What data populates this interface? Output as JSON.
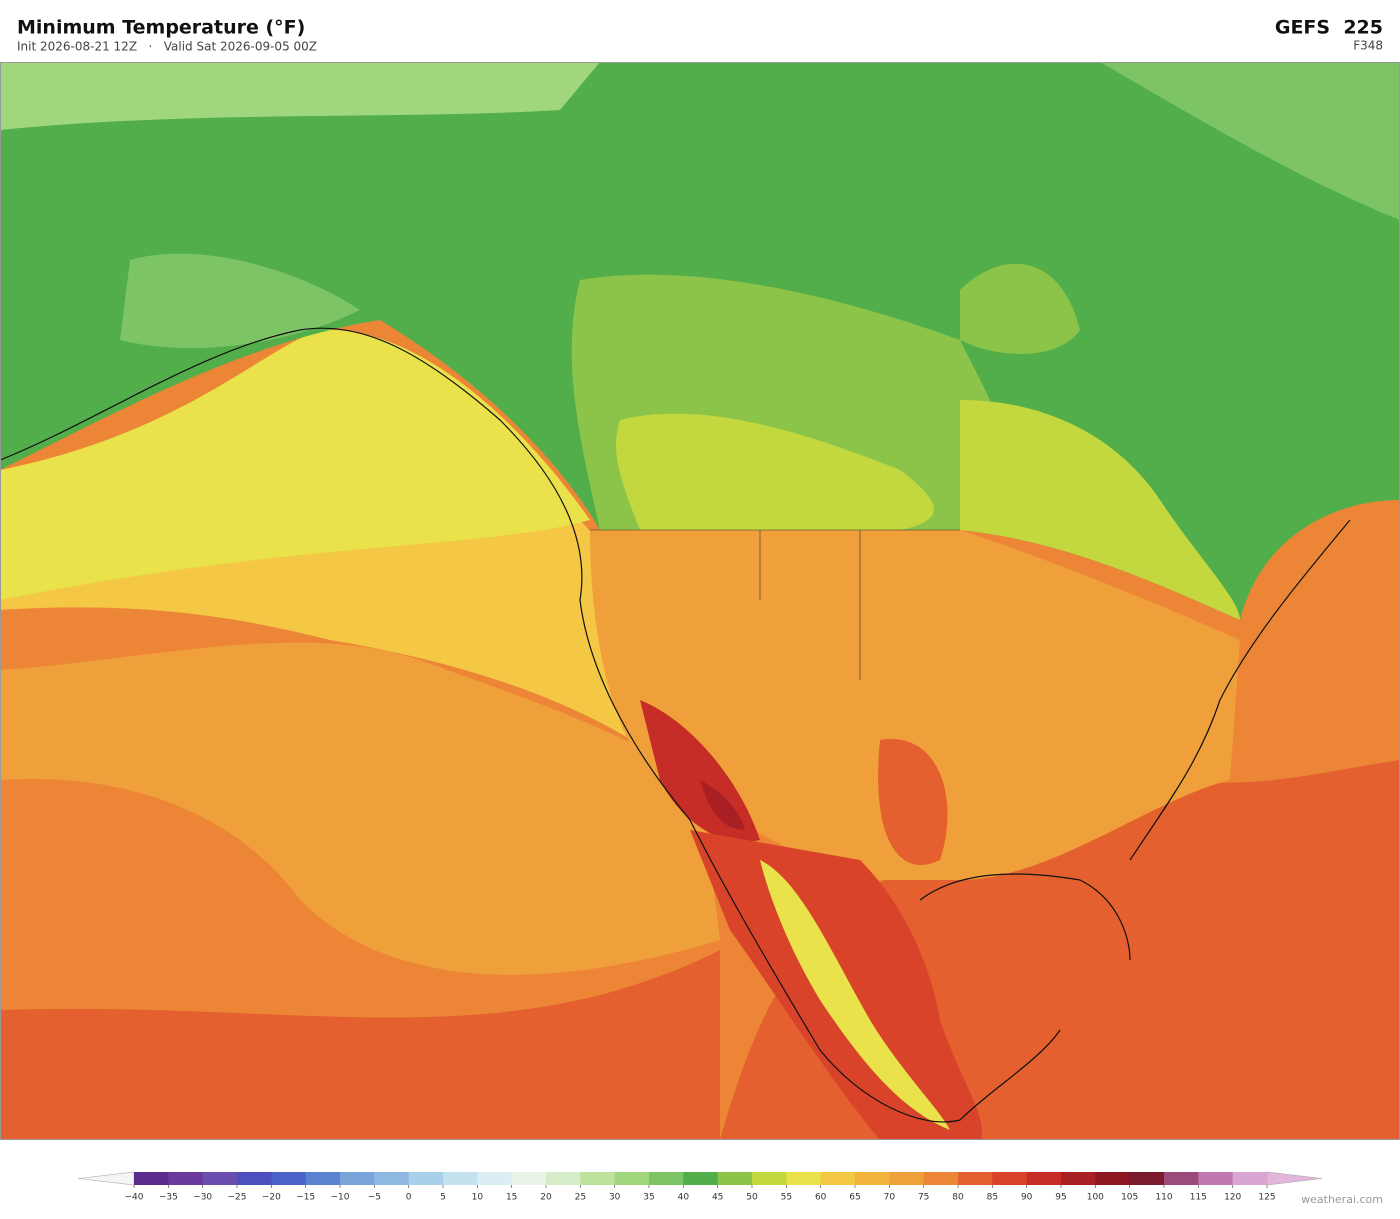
{
  "header": {
    "title": "Minimum Temperature  (°F)",
    "subtitle": "Init 2026-08-21 12Z   ·   Valid Sat 2026-09-05 00Z",
    "model": "GEFS  225",
    "forecast_hour": "F348"
  },
  "colorbar": {
    "labels": [
      "−40",
      "−35",
      "−30",
      "−25",
      "−20",
      "−15",
      "−10",
      "−5",
      "0",
      "5",
      "10",
      "15",
      "20",
      "25",
      "30",
      "35",
      "40",
      "45",
      "50",
      "55",
      "60",
      "65",
      "70",
      "75",
      "80",
      "85",
      "90",
      "95",
      "100",
      "105",
      "110",
      "115",
      "120",
      "125"
    ],
    "colors": [
      "#5a2a8c",
      "#6a3a9c",
      "#6b4caf",
      "#4c4fbf",
      "#4a62c9",
      "#5b82d1",
      "#7aa3da",
      "#8fb9e2",
      "#a9d0ea",
      "#c3e1ef",
      "#dbeef3",
      "#e8f5e6",
      "#d6ecc9",
      "#bde29c",
      "#a0d67e",
      "#7cc466",
      "#52ae4a",
      "#8cc44a",
      "#c3d83f",
      "#e9e24a",
      "#f4c744",
      "#f3b43e",
      "#f0a03a",
      "#ec8636",
      "#e4602e",
      "#d8432a",
      "#c62d26",
      "#a81f24",
      "#8c1721",
      "#7a1a2c",
      "#9c4a7c",
      "#bf78b0",
      "#d9a5d2"
    ],
    "under_color": "#f4f4f4",
    "over_color": "#e2b6dc"
  },
  "footer": {
    "credit": "weatherai.com"
  }
}
